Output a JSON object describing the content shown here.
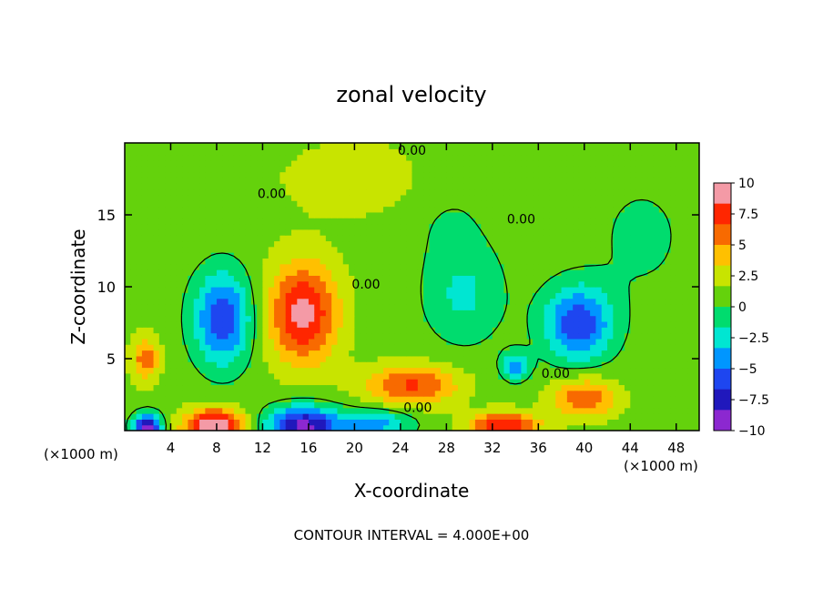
{
  "chart_data": {
    "type": "heatmap",
    "title": "zonal velocity",
    "xlabel": "X-coordinate",
    "ylabel": "Z-coordinate",
    "x_unit_label": "(×1000 m)",
    "x_unit_label_right": "(×1000 m)",
    "xlim": [
      0,
      50
    ],
    "ylim": [
      0,
      20
    ],
    "x_ticks": [
      4,
      8,
      12,
      16,
      20,
      24,
      28,
      32,
      36,
      40,
      44,
      48
    ],
    "y_ticks": [
      5,
      10,
      15
    ],
    "footer": "CONTOUR INTERVAL = 4.000E+00",
    "contour_label": "0.00",
    "colorbar": {
      "ticks": [
        10,
        7.5,
        5,
        2.5,
        0,
        -2.5,
        -5,
        -7.5,
        -10
      ],
      "tick_labels": [
        "10",
        "7.5",
        "5",
        "2.5",
        "0",
        "−2.5",
        "−5",
        "−7.5",
        "−10"
      ],
      "colors": [
        "#f49aa6",
        "#ff2600",
        "#f86a00",
        "#ffc000",
        "#c8e400",
        "#64d20c",
        "#00dc6e",
        "#00e6d2",
        "#0096ff",
        "#1e46f0",
        "#2018bc",
        "#8c28d0"
      ]
    },
    "background_value": 1.0,
    "features": [
      {
        "x": 8.5,
        "z": 7.8,
        "rx": 2.5,
        "rz": 3.2,
        "value": -7.5
      },
      {
        "x": 15.5,
        "z": 8.2,
        "rx": 3.0,
        "rz": 3.5,
        "value": 8.0
      },
      {
        "x": 39.5,
        "z": 7.5,
        "rx": 3.0,
        "rz": 2.6,
        "value": -7.5
      },
      {
        "x": 29.5,
        "z": 9.5,
        "rx": 3.5,
        "rz": 3.5,
        "value": -3.0
      },
      {
        "x": 25.0,
        "z": 3.2,
        "rx": 4.0,
        "rz": 1.4,
        "value": 6.0
      },
      {
        "x": 40.0,
        "z": 2.3,
        "rx": 2.8,
        "rz": 1.4,
        "value": 5.5
      },
      {
        "x": 34.0,
        "z": 4.5,
        "rx": 1.2,
        "rz": 1.0,
        "value": -5.0
      },
      {
        "x": 1.8,
        "z": 5.0,
        "rx": 1.2,
        "rz": 1.5,
        "value": 5.0
      },
      {
        "x": 2.0,
        "z": 0.3,
        "rx": 1.2,
        "rz": 0.9,
        "value": -10.0
      },
      {
        "x": 7.8,
        "z": 0.3,
        "rx": 2.6,
        "rz": 1.2,
        "value": 10.0
      },
      {
        "x": 15.6,
        "z": 0.3,
        "rx": 3.2,
        "rz": 1.4,
        "value": -10.0
      },
      {
        "x": 22.0,
        "z": 0.5,
        "rx": 3.0,
        "rz": 1.0,
        "value": -5.0
      },
      {
        "x": 33.0,
        "z": 0.4,
        "rx": 3.0,
        "rz": 0.9,
        "value": 7.5
      },
      {
        "x": 28.0,
        "z": 15.0,
        "rx": 4.0,
        "rz": 3.0,
        "value": -1.0
      },
      {
        "x": 3.0,
        "z": 12.0,
        "rx": 3.0,
        "rz": 4.0,
        "value": 0.0
      },
      {
        "x": 45.0,
        "z": 13.5,
        "rx": 4.0,
        "rz": 4.0,
        "value": -1.5
      },
      {
        "x": 20.0,
        "z": 17.5,
        "rx": 6.0,
        "rz": 2.5,
        "value": 2.0
      }
    ]
  }
}
